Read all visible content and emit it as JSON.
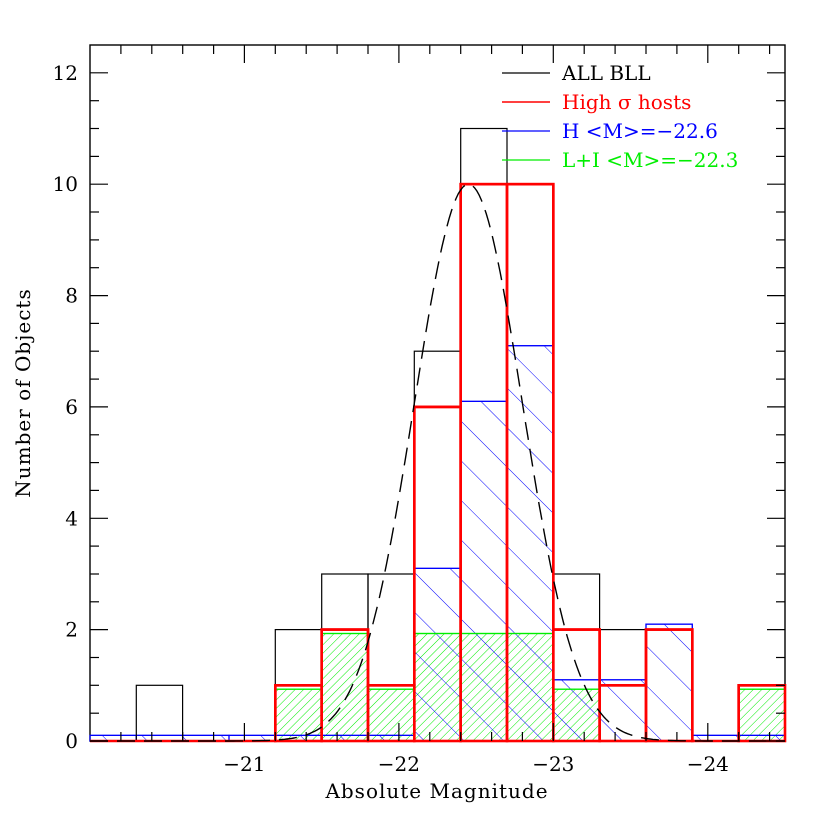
{
  "chart_data": {
    "type": "histogram",
    "xlabel": "Absolute Magnitude",
    "ylabel": "Number of Objects",
    "xlim": [
      -20.0,
      -24.5
    ],
    "ylim": [
      0,
      12.5
    ],
    "x_ticks": [
      -21,
      -22,
      -23,
      -24
    ],
    "x_tick_labels": [
      "−21",
      "−22",
      "−23",
      "−24"
    ],
    "y_ticks": [
      0,
      2,
      4,
      6,
      8,
      10,
      12
    ],
    "y_tick_labels": [
      "0",
      "2",
      "4",
      "6",
      "8",
      "10",
      "12"
    ],
    "bin_edges": [
      -20.0,
      -20.3,
      -20.6,
      -20.9,
      -21.2,
      -21.5,
      -21.8,
      -22.1,
      -22.4,
      -22.7,
      -23.0,
      -23.3,
      -23.6,
      -23.9,
      -24.2,
      -24.5
    ],
    "series": [
      {
        "name": "ALL BLL",
        "color": "#000000",
        "style": "step",
        "values": [
          0,
          1,
          0,
          0,
          2,
          3,
          3,
          7,
          11,
          10,
          3,
          2,
          2,
          0,
          1
        ]
      },
      {
        "name": "High σ hosts",
        "color": "#ff0000",
        "style": "step-thick",
        "values": [
          0,
          0,
          0,
          0,
          1,
          2,
          1,
          6,
          10,
          10,
          2,
          1,
          2,
          0,
          1
        ]
      },
      {
        "name": "H <M>=−22.6",
        "color": "#0000ff",
        "style": "hatched",
        "hatch": "backslash",
        "values": [
          0.1,
          0.1,
          0.1,
          0.1,
          0.1,
          0.1,
          0.1,
          3.1,
          6.1,
          7.1,
          1.1,
          1.1,
          2.1,
          0.1,
          0.1
        ]
      },
      {
        "name": "L+I <M>=−22.3",
        "color": "#00ee00",
        "style": "hatched",
        "hatch": "forward-dense",
        "values": [
          0,
          0,
          0,
          0,
          0.93,
          1.93,
          0.93,
          1.93,
          1.93,
          1.93,
          0.93,
          0,
          0,
          0,
          0.93
        ]
      }
    ],
    "fit_curve": {
      "type": "gaussian",
      "style": "dashed",
      "color": "#000000",
      "mean": -22.45,
      "sigma": 0.35,
      "amplitude": 10.0,
      "baseline": 0.0
    },
    "legend": {
      "placement": "top-right"
    }
  }
}
